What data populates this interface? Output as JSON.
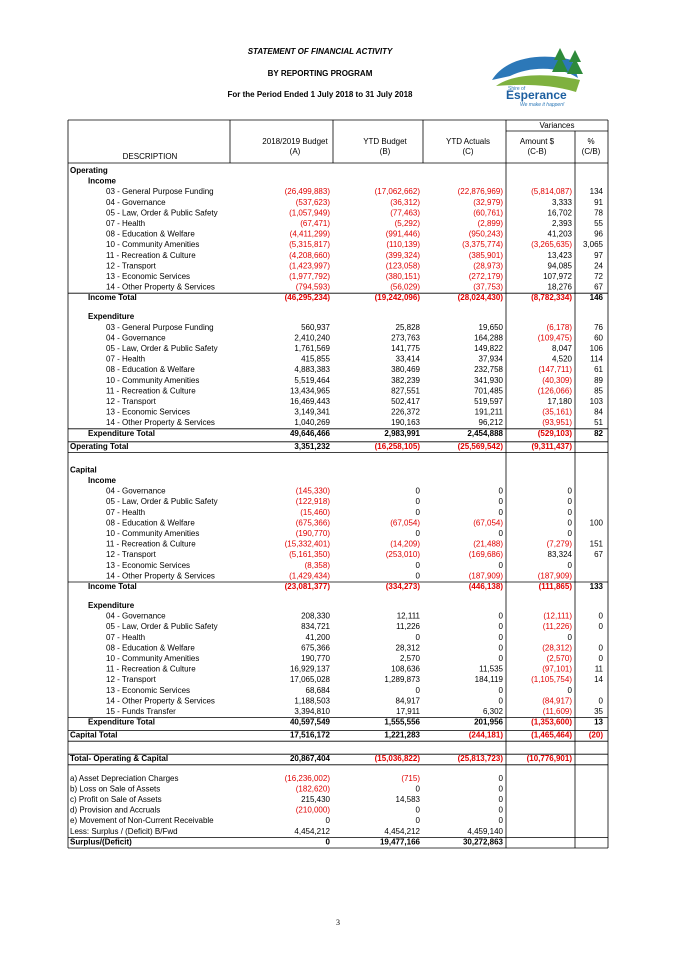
{
  "header": {
    "title": "STATEMENT OF FINANCIAL ACTIVITY",
    "subtitle": "BY REPORTING PROGRAM",
    "period": "For the Period Ended 1 July 2018 to 31 July 2018"
  },
  "logo": {
    "prefix": "Shire of",
    "name": "Esperance",
    "tagline": "We make it happen!"
  },
  "table": {
    "group_header": "Variances",
    "columns": [
      [
        "DESCRIPTION"
      ],
      [
        "2018/2019 Budget",
        "(A)"
      ],
      [
        "YTD Budget",
        "(B)"
      ],
      [
        "YTD Actuals",
        "(C)"
      ],
      [
        "Amount $",
        "(C-B)"
      ],
      [
        "%",
        "(C/B)"
      ]
    ],
    "sections": [
      {
        "title": "Operating",
        "groups": [
          {
            "title": "Income",
            "rows": [
              [
                "03 - General Purpose Funding",
                "(26,499,883)",
                "(17,062,662)",
                "(22,876,969)",
                "(5,814,087)",
                "134"
              ],
              [
                "04 - Governance",
                "(537,623)",
                "(36,312)",
                "(32,979)",
                "3,333",
                "91"
              ],
              [
                "05 - Law, Order & Public Safety",
                "(1,057,949)",
                "(77,463)",
                "(60,761)",
                "16,702",
                "78"
              ],
              [
                "07 - Health",
                "(67,471)",
                "(5,292)",
                "(2,899)",
                "2,393",
                "55"
              ],
              [
                "08 - Education & Welfare",
                "(4,411,299)",
                "(991,446)",
                "(950,243)",
                "41,203",
                "96"
              ],
              [
                "10 - Community Amenities",
                "(5,315,817)",
                "(110,139)",
                "(3,375,774)",
                "(3,265,635)",
                "3,065"
              ],
              [
                "11 - Recreation & Culture",
                "(4,208,660)",
                "(399,324)",
                "(385,901)",
                "13,423",
                "97"
              ],
              [
                "12 - Transport",
                "(1,423,997)",
                "(123,058)",
                "(28,973)",
                "94,085",
                "24"
              ],
              [
                "13 - Economic Services",
                "(1,977,792)",
                "(380,151)",
                "(272,179)",
                "107,972",
                "72"
              ],
              [
                "14 - Other Property & Services",
                "(794,593)",
                "(56,029)",
                "(37,753)",
                "18,276",
                "67"
              ]
            ],
            "total": [
              "Income Total",
              "(46,295,234)",
              "(19,242,096)",
              "(28,024,430)",
              "(8,782,334)",
              "146"
            ]
          },
          {
            "title": "Expenditure",
            "rows": [
              [
                "03 - General Purpose Funding",
                "560,937",
                "25,828",
                "19,650",
                "(6,178)",
                "76"
              ],
              [
                "04 - Governance",
                "2,410,240",
                "273,763",
                "164,288",
                "(109,475)",
                "60"
              ],
              [
                "05 - Law, Order & Public Safety",
                "1,761,569",
                "141,775",
                "149,822",
                "8,047",
                "106"
              ],
              [
                "07 - Health",
                "415,855",
                "33,414",
                "37,934",
                "4,520",
                "114"
              ],
              [
                "08 - Education & Welfare",
                "4,883,383",
                "380,469",
                "232,758",
                "(147,711)",
                "61"
              ],
              [
                "10 - Community Amenities",
                "5,519,464",
                "382,239",
                "341,930",
                "(40,309)",
                "89"
              ],
              [
                "11 - Recreation & Culture",
                "13,434,965",
                "827,551",
                "701,485",
                "(126,066)",
                "85"
              ],
              [
                "12 - Transport",
                "16,469,443",
                "502,417",
                "519,597",
                "17,180",
                "103"
              ],
              [
                "13 - Economic Services",
                "3,149,341",
                "226,372",
                "191,211",
                "(35,161)",
                "84"
              ],
              [
                "14 - Other Property & Services",
                "1,040,269",
                "190,163",
                "96,212",
                "(93,951)",
                "51"
              ]
            ],
            "total": [
              "Expenditure Total",
              "49,646,466",
              "2,983,991",
              "2,454,888",
              "(529,103)",
              "82"
            ]
          }
        ],
        "total": [
          "Operating Total",
          "3,351,232",
          "(16,258,105)",
          "(25,569,542)",
          "(9,311,437)"
        ]
      },
      {
        "title": "Capital",
        "groups": [
          {
            "title": "Income",
            "rows": [
              [
                "04 - Governance",
                "(145,330)",
                "0",
                "0",
                "0"
              ],
              [
                "05 - Law, Order & Public Safety",
                "(122,918)",
                "0",
                "0",
                "0"
              ],
              [
                "07 - Health",
                "(15,460)",
                "0",
                "0",
                "0"
              ],
              [
                "08 - Education & Welfare",
                "(675,366)",
                "(67,054)",
                "(67,054)",
                "0",
                "100"
              ],
              [
                "10 - Community Amenities",
                "(190,770)",
                "0",
                "0",
                "0"
              ],
              [
                "11 - Recreation & Culture",
                "(15,332,401)",
                "(14,209)",
                "(21,488)",
                "(7,279)",
                "151"
              ],
              [
                "12 - Transport",
                "(5,161,350)",
                "(253,010)",
                "(169,686)",
                "83,324",
                "67"
              ],
              [
                "13 - Economic Services",
                "(8,358)",
                "0",
                "0",
                "0"
              ],
              [
                "14 - Other Property & Services",
                "(1,429,434)",
                "0",
                "(187,909)",
                "(187,909)"
              ]
            ],
            "total": [
              "Income Total",
              "(23,081,377)",
              "(334,273)",
              "(446,138)",
              "(111,865)",
              "133"
            ]
          },
          {
            "title": "Expenditure",
            "rows": [
              [
                "04 - Governance",
                "208,330",
                "12,111",
                "0",
                "(12,111)",
                "0"
              ],
              [
                "05 - Law, Order & Public Safety",
                "834,721",
                "11,226",
                "0",
                "(11,226)",
                "0"
              ],
              [
                "07 - Health",
                "41,200",
                "0",
                "0",
                "0"
              ],
              [
                "08 - Education & Welfare",
                "675,366",
                "28,312",
                "0",
                "(28,312)",
                "0"
              ],
              [
                "10 - Community Amenities",
                "190,770",
                "2,570",
                "0",
                "(2,570)",
                "0"
              ],
              [
                "11 - Recreation & Culture",
                "16,929,137",
                "108,636",
                "11,535",
                "(97,101)",
                "11"
              ],
              [
                "12 - Transport",
                "17,065,028",
                "1,289,873",
                "184,119",
                "(1,105,754)",
                "14"
              ],
              [
                "13 - Economic Services",
                "68,684",
                "0",
                "0",
                "0"
              ],
              [
                "14 - Other Property & Services",
                "1,188,503",
                "84,917",
                "0",
                "(84,917)",
                "0"
              ],
              [
                "15 - Funds Transfer",
                "3,394,810",
                "17,911",
                "6,302",
                "(11,609)",
                "35"
              ]
            ],
            "total": [
              "Expenditure Total",
              "40,597,549",
              "1,555,556",
              "201,956",
              "(1,353,600)",
              "13"
            ]
          }
        ],
        "total": [
          "Capital Total",
          "17,516,172",
          "1,221,283",
          "(244,181)",
          "(1,465,464)",
          "(20)"
        ]
      }
    ],
    "grand_total": [
      "Total- Operating & Capital",
      "20,867,404",
      "(15,036,822)",
      "(25,813,723)",
      "(10,776,901)"
    ],
    "adjustments": [
      [
        "a) Asset Depreciation Charges",
        "(16,236,002)",
        "(715)",
        "0"
      ],
      [
        "b) Loss on Sale of Assets",
        "(182,620)",
        "0",
        "0"
      ],
      [
        "c) Profit on Sale of Assets",
        "215,430",
        "14,583",
        "0"
      ],
      [
        "d) Provision and Accruals",
        "(210,000)",
        "0",
        "0"
      ],
      [
        "e) Movement of Non-Current Receivable",
        "0",
        "0",
        "0"
      ],
      [
        "Less: Surplus / (Deficit) B/Fwd",
        "4,454,212",
        "4,454,212",
        "4,459,140"
      ]
    ],
    "result": [
      "Surplus/(Deficit)",
      "0",
      "19,477,166",
      "30,272,863"
    ]
  },
  "page_number": "3"
}
